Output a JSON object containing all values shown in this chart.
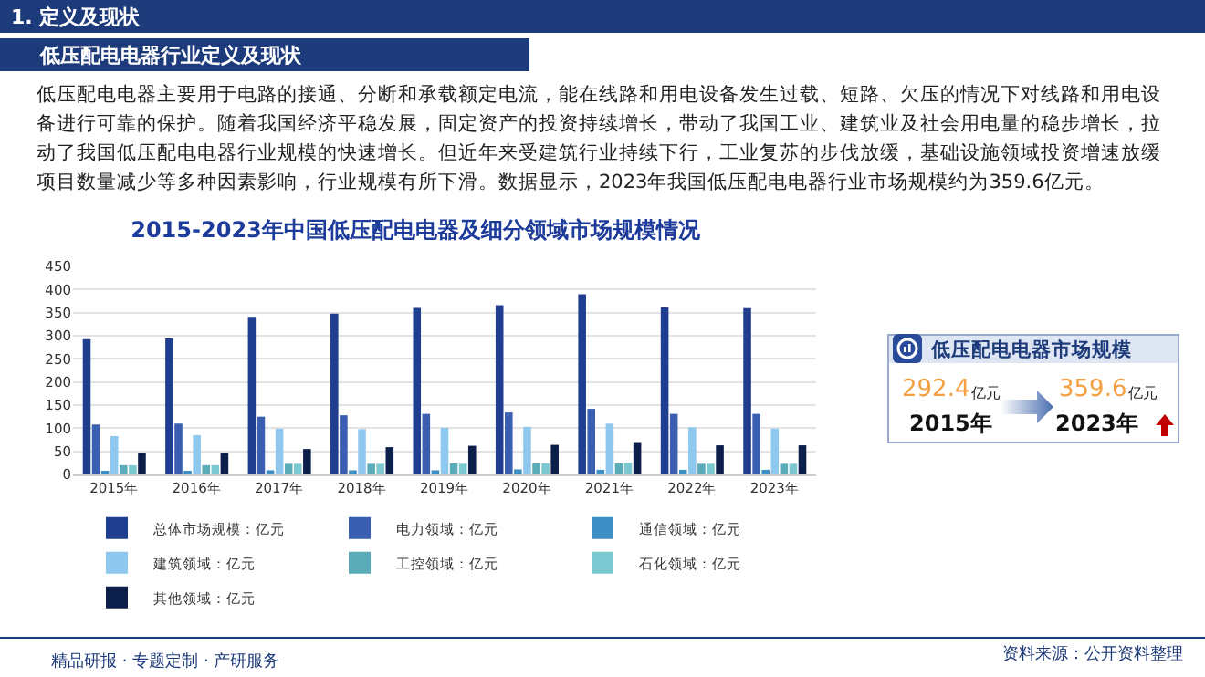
{
  "chart_data": {
    "type": "bar",
    "title": "2015-2023年中国低压配电电器及细分领域市场规模情况",
    "categories": [
      "2015年",
      "2016年",
      "2017年",
      "2018年",
      "2019年",
      "2020年",
      "2021年",
      "2022年",
      "2023年"
    ],
    "series": [
      {
        "name": "总体市场规模：亿元",
        "color": "#1f3e8f",
        "values": [
          292.4,
          294,
          341,
          348,
          360,
          366,
          390,
          361,
          359.6
        ]
      },
      {
        "name": "电力领域：亿元",
        "color": "#3a5fb0",
        "values": [
          108,
          110,
          125,
          128,
          131,
          134,
          142,
          131,
          131
        ]
      },
      {
        "name": "通信领域：亿元",
        "color": "#3c8fc5",
        "values": [
          7,
          7,
          9,
          9,
          9,
          11,
          10,
          10,
          10
        ]
      },
      {
        "name": "建筑领域：亿元",
        "color": "#8fc8ee",
        "values": [
          83,
          85,
          99,
          98,
          101,
          103,
          110,
          102,
          99
        ]
      },
      {
        "name": "工控领域：亿元",
        "color": "#5aacb8",
        "values": [
          20,
          20,
          23,
          23,
          24,
          24,
          24,
          23,
          23
        ]
      },
      {
        "name": "石化领域：亿元",
        "color": "#7cc8d0",
        "values": [
          20,
          20,
          23,
          23,
          23,
          24,
          25,
          23,
          23
        ]
      },
      {
        "name": "其他领域：亿元",
        "color": "#0b1f4a",
        "values": [
          47,
          47,
          55,
          59,
          62,
          64,
          70,
          63,
          63
        ]
      }
    ],
    "ylim": [
      0,
      450
    ],
    "yticks": [
      0,
      50,
      100,
      150,
      200,
      250,
      300,
      350,
      400,
      450
    ],
    "grid": "y",
    "legend": "bottom",
    "annotations": [
      "1. 定义及现状",
      "低压配电电器行业定义及现状",
      "低压配电电器主要用于电路的接通、分断和承载额定电流，能在线路和用电设备发生过载、短路、欠压的情况下对线路和用电设备进行可靠的保护。随着我国经济平稳发展，固定资产的投资持续增长，带动了我国工业、建筑业及社会用电量的稳步增长，拉动了我国低压配电电器行业规模的快速增长。但近年来受建筑行业持续下行，工业复苏的步伐放缓，基础设施领域投资增速放缓项目数量减少等多种因素影响，行业规模有所下滑。数据显示，2023年我国低压配电电器行业市场规模约为359.6亿元。",
      "低压配电电器市场规模",
      "292.4",
      "亿元",
      "2015年",
      "359.6",
      "亿元",
      "2023年",
      "精品研报 · 专题定制 · 产研服务",
      "资料来源：公开资料整理"
    ]
  }
}
